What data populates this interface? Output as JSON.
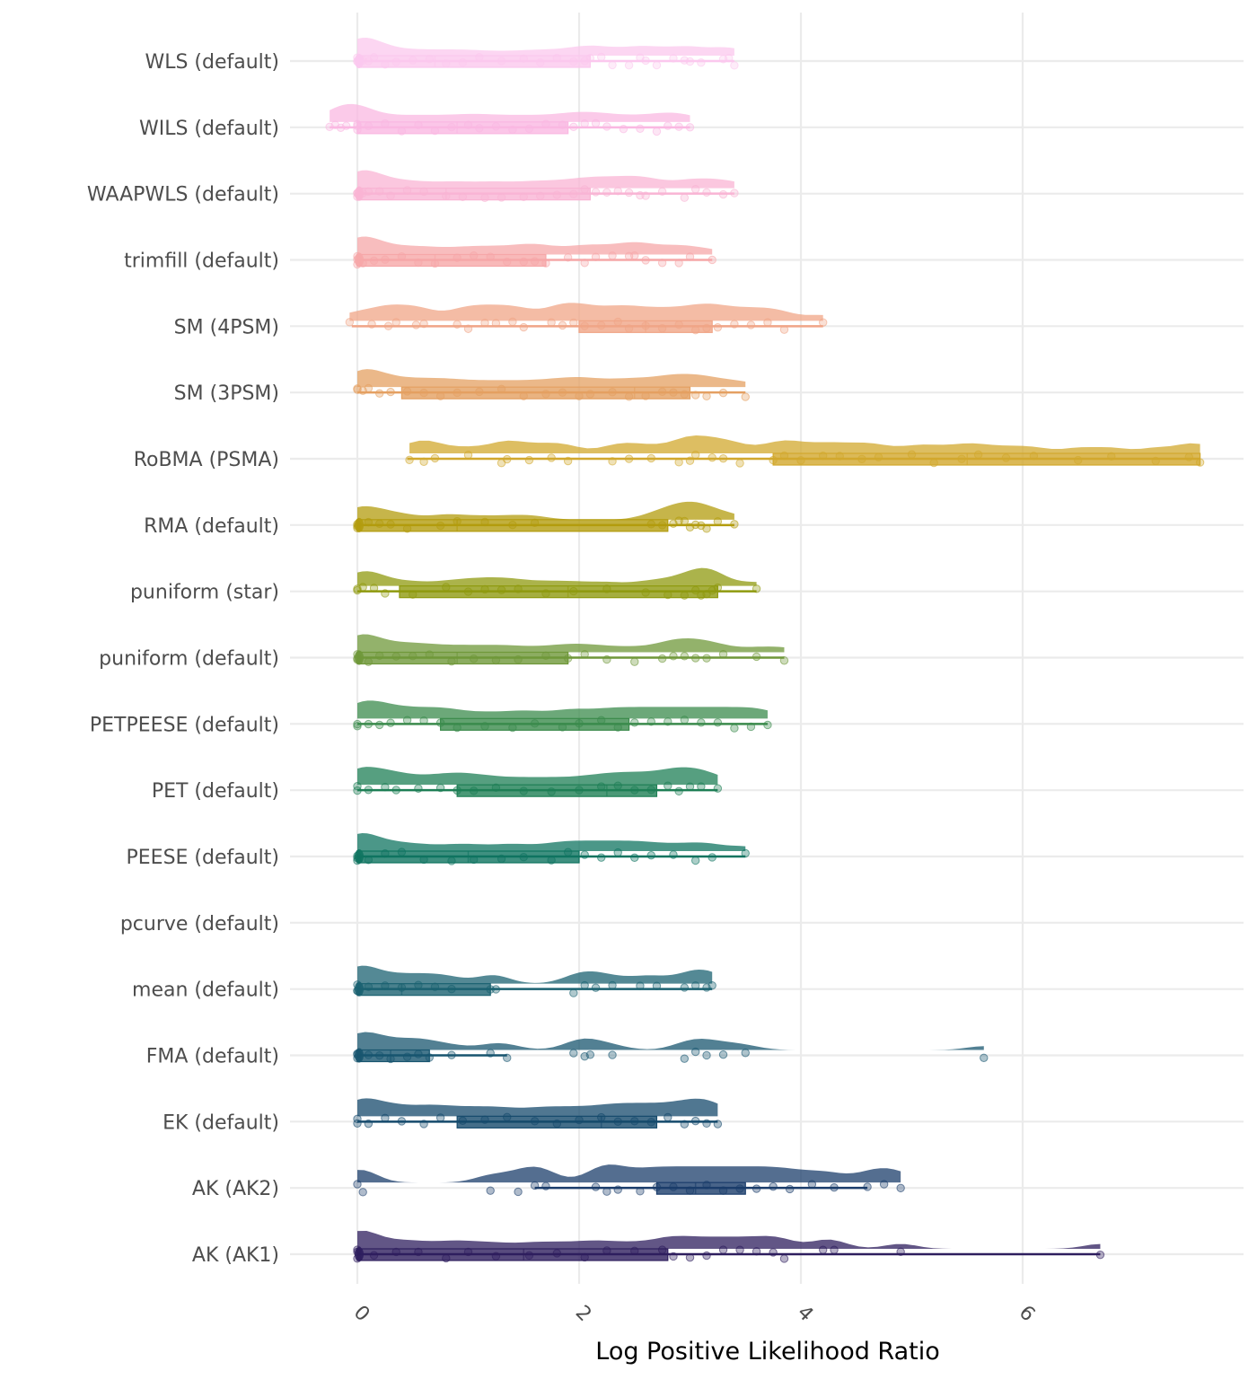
{
  "chart_data": {
    "type": "raincloud",
    "title": "",
    "xlabel": "Log Positive Likelihood Ratio",
    "ylabel": "",
    "xlim": [
      -0.6,
      8.0
    ],
    "x_ticks": [
      0,
      2,
      4,
      6
    ],
    "x_tick_labels": [
      "0",
      "2",
      "4",
      "6"
    ],
    "grid": true,
    "legend": "none",
    "categories": [
      "WLS (default)",
      "WILS (default)",
      "WAAPWLS (default)",
      "trimfill (default)",
      "SM (4PSM)",
      "SM (3PSM)",
      "RoBMA (PSMA)",
      "RMA (default)",
      "puniform (star)",
      "puniform (default)",
      "PETPEESE (default)",
      "PET (default)",
      "PEESE (default)",
      "pcurve (default)",
      "mean (default)",
      "FMA (default)",
      "EK (default)",
      "AK (AK2)",
      "AK (AK1)"
    ],
    "series": [
      {
        "name": "WLS (default)",
        "color": "#FBC8EE",
        "box": {
          "min": 0.0,
          "q1": 0.0,
          "median": 0.7,
          "q3": 2.1,
          "max": 3.4
        },
        "points": [
          0,
          0,
          0,
          0.02,
          0.05,
          0.1,
          0.15,
          0.25,
          0.35,
          0.5,
          0.65,
          0.8,
          0.95,
          1.1,
          1.3,
          1.5,
          1.65,
          1.8,
          1.95,
          2.05,
          2.1,
          2.2,
          2.3,
          2.45,
          2.55,
          2.6,
          2.7,
          2.85,
          2.95,
          3.0,
          3.1,
          3.3,
          3.35,
          3.4
        ]
      },
      {
        "name": "WILS (default)",
        "color": "#FAB8E2",
        "box": {
          "min": -0.25,
          "q1": 0.0,
          "median": 0.9,
          "q3": 1.9,
          "max": 3.0
        },
        "points": [
          -0.25,
          -0.2,
          -0.15,
          -0.1,
          0,
          0,
          0,
          0.1,
          0.25,
          0.4,
          0.55,
          0.7,
          0.85,
          1.0,
          1.1,
          1.25,
          1.4,
          1.55,
          1.7,
          1.85,
          1.95,
          2.05,
          2.15,
          2.25,
          2.4,
          2.55,
          2.7,
          2.8,
          2.9,
          3.0
        ]
      },
      {
        "name": "WAAPWLS (default)",
        "color": "#F9B4D4",
        "box": {
          "min": 0.0,
          "q1": 0.0,
          "median": 0.8,
          "q3": 2.1,
          "max": 3.4
        },
        "points": [
          0,
          0,
          0,
          0.05,
          0.1,
          0.2,
          0.3,
          0.45,
          0.6,
          0.8,
          0.95,
          1.15,
          1.3,
          1.5,
          1.65,
          1.8,
          1.95,
          2.05,
          2.15,
          2.25,
          2.35,
          2.45,
          2.55,
          2.6,
          2.75,
          2.95,
          3.05,
          3.15,
          3.3,
          3.4
        ]
      },
      {
        "name": "trimfill (default)",
        "color": "#F6A7A8",
        "box": {
          "min": 0.0,
          "q1": 0.0,
          "median": 0.7,
          "q3": 1.7,
          "max": 3.2
        },
        "points": [
          0,
          0,
          0,
          0.05,
          0.15,
          0.25,
          0.4,
          0.55,
          0.7,
          0.9,
          1.05,
          1.2,
          1.35,
          1.5,
          1.6,
          1.7,
          1.9,
          2.05,
          2.15,
          2.3,
          2.45,
          2.5,
          2.6,
          2.75,
          2.9,
          3.0,
          3.2
        ]
      },
      {
        "name": "SM (4PSM)",
        "color": "#F0A587",
        "box": {
          "min": -0.05,
          "q1": 2.0,
          "median": 2.6,
          "q3": 3.2,
          "max": 4.2
        },
        "points": [
          -0.07,
          0.13,
          0.28,
          0.35,
          0.53,
          0.6,
          0.9,
          1.0,
          1.15,
          1.25,
          1.4,
          1.5,
          1.75,
          1.85,
          1.95,
          2.05,
          2.2,
          2.35,
          2.45,
          2.6,
          2.75,
          2.9,
          3.05,
          3.15,
          3.25,
          3.4,
          3.55,
          3.7,
          3.85,
          4.2
        ]
      },
      {
        "name": "SM (3PSM)",
        "color": "#E4A062",
        "box": {
          "min": 0.0,
          "q1": 0.4,
          "median": 2.5,
          "q3": 3.0,
          "max": 3.5
        },
        "points": [
          0,
          0,
          0.05,
          0.1,
          0.2,
          0.3,
          0.45,
          0.6,
          0.75,
          0.9,
          1.1,
          1.3,
          1.5,
          1.7,
          1.85,
          2.0,
          2.1,
          2.3,
          2.45,
          2.6,
          2.75,
          2.85,
          2.95,
          3.05,
          3.15,
          3.3,
          3.5
        ]
      },
      {
        "name": "RoBMA (PSMA)",
        "color": "#D2A82D",
        "box": {
          "min": 0.45,
          "q1": 3.75,
          "median": 5.5,
          "q3": 7.6,
          "max": 7.6
        },
        "points": [
          0.47,
          0.6,
          0.7,
          1.0,
          1.3,
          1.35,
          1.55,
          1.75,
          1.9,
          2.3,
          2.45,
          2.65,
          2.9,
          3.0,
          3.05,
          3.2,
          3.3,
          3.45,
          3.75,
          3.85,
          4.0,
          4.2,
          4.35,
          4.55,
          4.7,
          5.0,
          5.2,
          5.45,
          5.6,
          5.85,
          6.1,
          6.5,
          6.8,
          7.2,
          7.5,
          7.6
        ]
      },
      {
        "name": "RMA (default)",
        "color": "#B39C0E",
        "box": {
          "min": 0.0,
          "q1": 0.0,
          "median": 0.9,
          "q3": 2.8,
          "max": 3.4
        },
        "points": [
          0,
          0,
          0,
          0.1,
          0.2,
          0.3,
          0.45,
          0.75,
          0.9,
          1.15,
          1.4,
          1.6,
          2.65,
          2.75,
          2.85,
          2.9,
          2.95,
          3.0,
          3.05,
          3.1,
          3.15,
          3.25,
          3.4
        ]
      },
      {
        "name": "puniform (star)",
        "color": "#8F9A0F",
        "box": {
          "min": 0.0,
          "q1": 0.38,
          "median": 1.9,
          "q3": 3.25,
          "max": 3.6
        },
        "points": [
          0,
          0,
          0.05,
          0.15,
          0.25,
          0.5,
          0.8,
          1.0,
          1.15,
          1.3,
          1.45,
          1.7,
          1.95,
          2.25,
          2.6,
          2.8,
          2.95,
          3.05,
          3.1,
          3.15,
          3.2,
          3.25,
          3.6
        ]
      },
      {
        "name": "puniform (default)",
        "color": "#6F983A",
        "box": {
          "min": 0.0,
          "q1": 0.0,
          "median": 0.9,
          "q3": 1.9,
          "max": 3.85
        },
        "points": [
          0,
          0,
          0,
          0.1,
          0.2,
          0.35,
          0.5,
          0.65,
          0.85,
          1.05,
          1.25,
          1.45,
          1.7,
          1.9,
          2.05,
          2.25,
          2.5,
          2.75,
          2.85,
          2.95,
          3.05,
          3.15,
          3.3,
          3.6,
          3.85
        ]
      },
      {
        "name": "PETPEESE (default)",
        "color": "#3B8B4C",
        "box": {
          "min": 0.0,
          "q1": 0.75,
          "median": 2.0,
          "q3": 2.45,
          "max": 3.7
        },
        "points": [
          0,
          0,
          0.1,
          0.2,
          0.3,
          0.45,
          0.6,
          0.75,
          0.9,
          1.15,
          1.4,
          1.6,
          1.85,
          2.0,
          2.2,
          2.35,
          2.5,
          2.65,
          2.8,
          2.95,
          3.1,
          3.25,
          3.4,
          3.55,
          3.7
        ]
      },
      {
        "name": "PET (default)",
        "color": "#1E7F55",
        "box": {
          "min": 0.0,
          "q1": 0.9,
          "median": 2.25,
          "q3": 2.7,
          "max": 3.25
        },
        "points": [
          0,
          0,
          0.1,
          0.25,
          0.35,
          0.55,
          0.75,
          0.9,
          1.05,
          1.25,
          1.5,
          1.75,
          2.0,
          2.2,
          2.35,
          2.5,
          2.65,
          2.8,
          2.9,
          3.0,
          3.1,
          3.25
        ]
      },
      {
        "name": "PEESE (default)",
        "color": "#0F7460",
        "box": {
          "min": 0.0,
          "q1": 0.0,
          "median": 1.0,
          "q3": 2.0,
          "max": 3.5
        },
        "points": [
          0,
          0,
          0,
          0.1,
          0.25,
          0.4,
          0.6,
          0.85,
          1.05,
          1.3,
          1.5,
          1.75,
          1.9,
          2.05,
          2.2,
          2.35,
          2.5,
          2.65,
          2.85,
          3.05,
          3.2,
          3.5
        ]
      },
      {
        "name": "pcurve (default)",
        "color": "#0E6B6B",
        "box": null,
        "points": []
      },
      {
        "name": "mean (default)",
        "color": "#1B6271",
        "box": {
          "min": 0.0,
          "q1": 0.0,
          "median": 0.4,
          "q3": 1.2,
          "max": 3.2
        },
        "points": [
          0,
          0,
          0,
          0.1,
          0.25,
          0.4,
          0.55,
          0.7,
          0.85,
          1.2,
          1.25,
          1.95,
          2.05,
          2.15,
          2.3,
          2.55,
          2.7,
          2.95,
          3.05,
          3.15,
          3.2
        ]
      },
      {
        "name": "FMA (default)",
        "color": "#18556F",
        "box": {
          "min": 0.0,
          "q1": 0.0,
          "median": 0.3,
          "q3": 0.65,
          "max": 1.35
        },
        "points": [
          0,
          0,
          0,
          0.1,
          0.2,
          0.3,
          0.45,
          0.55,
          0.65,
          0.85,
          1.2,
          1.35,
          1.95,
          2.05,
          2.1,
          2.3,
          2.95,
          3.05,
          3.15,
          3.3,
          3.5,
          5.65
        ]
      },
      {
        "name": "EK (default)",
        "color": "#154A6C",
        "box": {
          "min": 0.0,
          "q1": 0.9,
          "median": 2.2,
          "q3": 2.7,
          "max": 3.25
        },
        "points": [
          0,
          0,
          0.1,
          0.25,
          0.4,
          0.6,
          0.75,
          0.95,
          1.15,
          1.35,
          1.6,
          1.8,
          2.0,
          2.2,
          2.35,
          2.5,
          2.65,
          2.8,
          2.95,
          3.05,
          3.15,
          3.25
        ]
      },
      {
        "name": "AK (AK2)",
        "color": "#1B3D6B",
        "box": {
          "min": 1.6,
          "q1": 2.7,
          "median": 3.05,
          "q3": 3.5,
          "max": 4.6
        },
        "points": [
          0,
          0.05,
          1.2,
          1.45,
          1.6,
          1.7,
          2.15,
          2.25,
          2.35,
          2.55,
          2.7,
          2.85,
          3.0,
          3.15,
          3.3,
          3.45,
          3.6,
          3.75,
          3.9,
          4.1,
          4.3,
          4.6,
          4.75,
          4.9
        ]
      },
      {
        "name": "AK (AK1)",
        "color": "#2E1E5E",
        "box": {
          "min": 0.0,
          "q1": 0.0,
          "median": 1.5,
          "q3": 2.8,
          "max": 6.7
        },
        "points": [
          0,
          0,
          0,
          0.15,
          0.35,
          0.55,
          0.8,
          1.0,
          1.25,
          1.55,
          1.8,
          2.05,
          2.25,
          2.5,
          2.75,
          2.85,
          3.0,
          3.15,
          3.3,
          3.45,
          3.6,
          3.75,
          3.85,
          4.2,
          4.3,
          4.9,
          6.7
        ]
      }
    ]
  }
}
